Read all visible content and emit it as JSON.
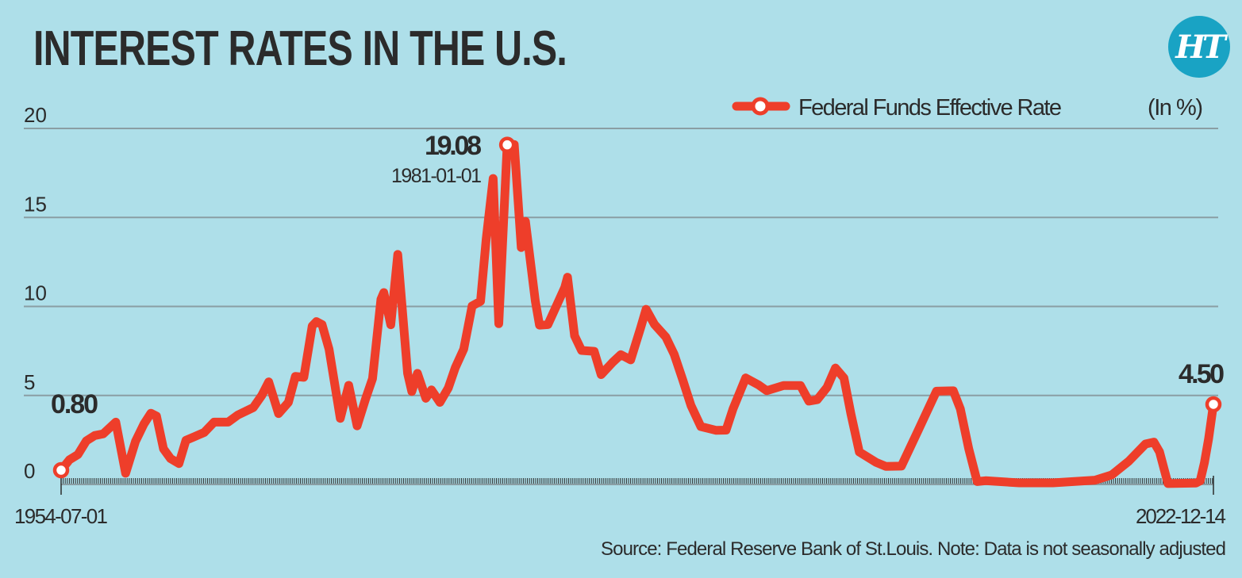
{
  "header": {
    "title": "INTEREST RATES IN THE U.S.",
    "logo_text": "HT"
  },
  "colors": {
    "background": "#aedfe9",
    "line": "#ee3e2a",
    "grid": "#8a9ea4",
    "text": "#2b2b2b",
    "logo": "#19a3c4"
  },
  "chart_data": {
    "type": "line",
    "title": "INTEREST RATES IN THE U.S.",
    "unit_label": "(In %)",
    "legend": {
      "position": "top-right",
      "entries": [
        "Federal Funds Effective Rate"
      ]
    },
    "grid": true,
    "ylim": [
      0,
      20
    ],
    "yticks": [
      0,
      5,
      10,
      15,
      20
    ],
    "xlim": [
      "1954-07-01",
      "2022-12-14"
    ],
    "xtick_labels": [
      "1954-07-01",
      "2022-12-14"
    ],
    "annotations": [
      {
        "label": "0.80",
        "date": "1954-07-01",
        "value": 0.8
      },
      {
        "label": "19.08",
        "sublabel": "1981-01-01",
        "date": "1981-01-01",
        "value": 19.08
      },
      {
        "label": "4.50",
        "date": "2022-12-14",
        "value": 4.5
      }
    ],
    "series": [
      {
        "name": "Federal Funds Effective Rate",
        "x": [
          "1954-07",
          "1955-01",
          "1955-07",
          "1956-01",
          "1956-07",
          "1957-01",
          "1957-10",
          "1958-05",
          "1958-12",
          "1959-06",
          "1959-11",
          "1960-03",
          "1960-08",
          "1961-01",
          "1961-07",
          "1961-12",
          "1962-06",
          "1963-01",
          "1963-08",
          "1964-06",
          "1965-01",
          "1965-12",
          "1966-06",
          "1966-11",
          "1967-06",
          "1968-01",
          "1968-06",
          "1968-12",
          "1969-06",
          "1969-09",
          "1970-01",
          "1970-06",
          "1971-02",
          "1971-08",
          "1972-02",
          "1972-08",
          "1973-01",
          "1973-07",
          "1973-09",
          "1974-02",
          "1974-07",
          "1975-02",
          "1975-05",
          "1975-09",
          "1976-03",
          "1976-07",
          "1977-01",
          "1977-07",
          "1977-12",
          "1978-06",
          "1978-12",
          "1979-06",
          "1979-10",
          "1980-03",
          "1980-07",
          "1981-01",
          "1981-06",
          "1981-11",
          "1982-02",
          "1982-09",
          "1982-12",
          "1983-06",
          "1984-06",
          "1984-08",
          "1985-01",
          "1985-06",
          "1986-03",
          "1986-08",
          "1987-04",
          "1987-10",
          "1988-05",
          "1988-12",
          "1989-04",
          "1989-10",
          "1990-06",
          "1990-12",
          "1991-06",
          "1991-12",
          "1992-07",
          "1993-06",
          "1994-01",
          "1994-06",
          "1995-03",
          "1995-12",
          "1996-06",
          "1997-06",
          "1998-06",
          "1998-12",
          "1999-06",
          "2000-01",
          "2000-07",
          "2001-01",
          "2001-06",
          "2001-12",
          "2002-12",
          "2003-07",
          "2004-06",
          "2005-06",
          "2006-07",
          "2007-07",
          "2007-12",
          "2008-06",
          "2008-12",
          "2009-06",
          "2011-06",
          "2013-06",
          "2015-12",
          "2016-12",
          "2017-12",
          "2018-12",
          "2019-06",
          "2019-10",
          "2020-04",
          "2021-12",
          "2022-03",
          "2022-06",
          "2022-09",
          "2022-12-14"
        ],
        "values": [
          0.8,
          1.39,
          1.68,
          2.45,
          2.75,
          2.84,
          3.5,
          0.63,
          2.42,
          3.39,
          4.0,
          3.84,
          2.0,
          1.45,
          1.17,
          2.48,
          2.68,
          2.92,
          3.5,
          3.5,
          3.9,
          4.32,
          5.0,
          5.76,
          3.98,
          4.61,
          6.07,
          6.02,
          8.9,
          9.15,
          8.98,
          7.6,
          3.71,
          5.57,
          3.29,
          4.8,
          5.94,
          10.4,
          10.78,
          8.97,
          12.92,
          6.24,
          5.22,
          6.24,
          4.84,
          5.31,
          4.61,
          5.42,
          6.56,
          7.6,
          10.03,
          10.29,
          13.77,
          17.19,
          9.03,
          19.08,
          19.1,
          13.31,
          14.78,
          10.31,
          8.95,
          8.98,
          11.06,
          11.64,
          8.35,
          7.53,
          7.48,
          6.17,
          6.85,
          7.29,
          7.0,
          8.76,
          9.84,
          8.99,
          8.29,
          7.31,
          5.9,
          4.43,
          3.25,
          3.04,
          3.05,
          4.25,
          5.98,
          5.6,
          5.27,
          5.56,
          5.56,
          4.68,
          4.76,
          5.45,
          6.54,
          5.98,
          3.97,
          1.82,
          1.24,
          1.01,
          1.03,
          3.04,
          5.24,
          5.26,
          4.24,
          2.0,
          0.16,
          0.21,
          0.09,
          0.09,
          0.24,
          0.54,
          1.3,
          2.27,
          2.38,
          1.83,
          0.05,
          0.08,
          0.2,
          1.21,
          2.56,
          4.5
        ]
      }
    ]
  },
  "source": "Source: Federal Reserve Bank of St.Louis. Note: Data is not seasonally adjusted"
}
